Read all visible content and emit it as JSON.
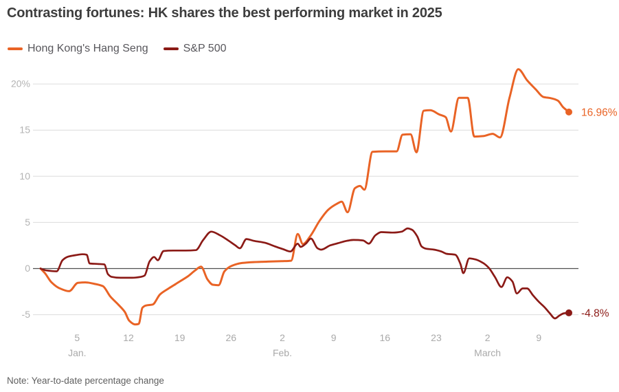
{
  "title": "Contrasting fortunes: HK shares the best performing market in 2025",
  "note": "Note: Year-to-date percentage change",
  "legend": {
    "items": [
      {
        "label": "Hong Kong's Hang Seng",
        "color": "#e96325"
      },
      {
        "label": "S&P 500",
        "color": "#8b1a16"
      }
    ]
  },
  "colors": {
    "grid": "#dcdcdc",
    "zero_line": "#4f4f4f",
    "y_tick_text": "#b3b3b3",
    "x_tick_text": "#a9a9a9",
    "title_text": "#3d3d3d",
    "note_text": "#5f5f5f"
  },
  "chart_data": {
    "type": "line",
    "title": "Contrasting fortunes: HK shares the best performing market in 2025",
    "note": "Note: Year-to-date percentage change",
    "x_unit": "days since Dec 31, 2024",
    "ylabel": "Year-to-date percentage change (%)",
    "ylim": [
      -7.5,
      22.5
    ],
    "grid": "horizontal",
    "legend_position": "top-left",
    "y_ticks": [
      {
        "v": 20,
        "label": "20%"
      },
      {
        "v": 15,
        "label": "15"
      },
      {
        "v": 10,
        "label": "10"
      },
      {
        "v": 5,
        "label": "5"
      },
      {
        "v": 0,
        "label": "0",
        "zero_line": true
      },
      {
        "v": -5,
        "label": "-5"
      }
    ],
    "x_ticks": [
      {
        "d": 5,
        "label": "5",
        "month": "Jan."
      },
      {
        "d": 12,
        "label": "12"
      },
      {
        "d": 19,
        "label": "19"
      },
      {
        "d": 26,
        "label": "26"
      },
      {
        "d": 33,
        "label": "2",
        "month": "Feb."
      },
      {
        "d": 40,
        "label": "9"
      },
      {
        "d": 47,
        "label": "16"
      },
      {
        "d": 54,
        "label": "23"
      },
      {
        "d": 61,
        "label": "2",
        "month": "March"
      },
      {
        "d": 68,
        "label": "9"
      }
    ],
    "series": [
      {
        "name": "Hong Kong's Hang Seng",
        "color": "#e96325",
        "line_width": 3,
        "end_label": "16.96%",
        "end_value": 16.96,
        "points": [
          [
            0,
            0
          ],
          [
            0.6,
            -0.5
          ],
          [
            1.5,
            -1.5
          ],
          [
            2.5,
            -2.1
          ],
          [
            3.9,
            -2.45
          ],
          [
            5.1,
            -1.55
          ],
          [
            6.1,
            -1.5
          ],
          [
            7.3,
            -1.65
          ],
          [
            8.5,
            -1.9
          ],
          [
            9.5,
            -3.0
          ],
          [
            10.6,
            -3.9
          ],
          [
            11.5,
            -4.7
          ],
          [
            12.1,
            -5.65
          ],
          [
            12.9,
            -6.05
          ],
          [
            13.4,
            -6.0
          ],
          [
            13.9,
            -4.25
          ],
          [
            14.4,
            -4.0
          ],
          [
            15.3,
            -3.9
          ],
          [
            16.3,
            -2.8
          ],
          [
            17.4,
            -2.2
          ],
          [
            18.4,
            -1.7
          ],
          [
            19.1,
            -1.35
          ],
          [
            20.1,
            -0.85
          ],
          [
            21.1,
            -0.2
          ],
          [
            21.9,
            0.2
          ],
          [
            22.8,
            -1.2
          ],
          [
            23.5,
            -1.75
          ],
          [
            24.3,
            -1.8
          ],
          [
            25.1,
            -0.3
          ],
          [
            26.1,
            0.3
          ],
          [
            27.5,
            0.6
          ],
          [
            29.1,
            0.7
          ],
          [
            31,
            0.75
          ],
          [
            32.9,
            0.8
          ],
          [
            34.2,
            0.85
          ],
          [
            35.1,
            3.75
          ],
          [
            35.8,
            2.65
          ],
          [
            36.8,
            3.5
          ],
          [
            38.1,
            5.2
          ],
          [
            39.3,
            6.4
          ],
          [
            40.4,
            7.0
          ],
          [
            41.1,
            7.25
          ],
          [
            41.9,
            6.1
          ],
          [
            42.9,
            8.7
          ],
          [
            43.6,
            8.95
          ],
          [
            44.2,
            8.55
          ],
          [
            45.3,
            12.65
          ],
          [
            47,
            12.7
          ],
          [
            48.6,
            12.7
          ],
          [
            49.4,
            14.5
          ],
          [
            50.5,
            14.55
          ],
          [
            51.3,
            12.6
          ],
          [
            52.3,
            17.1
          ],
          [
            53.2,
            17.15
          ],
          [
            54.4,
            16.7
          ],
          [
            55.3,
            16.4
          ],
          [
            56,
            14.85
          ],
          [
            57.1,
            18.5
          ],
          [
            58.3,
            18.5
          ],
          [
            59.2,
            14.3
          ],
          [
            60.4,
            14.35
          ],
          [
            61.7,
            14.6
          ],
          [
            62.7,
            14.2
          ],
          [
            64,
            18.5
          ],
          [
            65.2,
            21.6
          ],
          [
            66.4,
            20.4
          ],
          [
            67.6,
            19.4
          ],
          [
            68.6,
            18.6
          ],
          [
            69.7,
            18.45
          ],
          [
            70.6,
            18.2
          ],
          [
            71.3,
            17.5
          ],
          [
            72.1,
            16.96
          ]
        ]
      },
      {
        "name": "S&P 500",
        "color": "#8b1a16",
        "line_width": 2.7,
        "end_label": "-4.8%",
        "end_value": -4.8,
        "points": [
          [
            0,
            0
          ],
          [
            0.8,
            -0.2
          ],
          [
            2.2,
            -0.3
          ],
          [
            3,
            0.9
          ],
          [
            3.8,
            1.3
          ],
          [
            4.8,
            1.45
          ],
          [
            5.7,
            1.55
          ],
          [
            6.3,
            1.5
          ],
          [
            6.7,
            0.55
          ],
          [
            7.8,
            0.5
          ],
          [
            8.7,
            0.45
          ],
          [
            9.2,
            -0.6
          ],
          [
            9.7,
            -0.9
          ],
          [
            10.9,
            -1.0
          ],
          [
            12.5,
            -1.0
          ],
          [
            13.7,
            -0.9
          ],
          [
            14.2,
            -0.75
          ],
          [
            14.9,
            0.8
          ],
          [
            15.5,
            1.25
          ],
          [
            16,
            0.9
          ],
          [
            16.8,
            1.9
          ],
          [
            18.1,
            1.95
          ],
          [
            19.8,
            1.95
          ],
          [
            21.2,
            2.0
          ],
          [
            22.2,
            3.1
          ],
          [
            23.3,
            4.0
          ],
          [
            24.5,
            3.6
          ],
          [
            25.7,
            3.0
          ],
          [
            26.6,
            2.5
          ],
          [
            27.2,
            2.2
          ],
          [
            28.1,
            3.2
          ],
          [
            29.1,
            3.0
          ],
          [
            30.6,
            2.8
          ],
          [
            32,
            2.4
          ],
          [
            33.1,
            2.1
          ],
          [
            34.1,
            1.85
          ],
          [
            35.1,
            2.7
          ],
          [
            35.5,
            2.35
          ],
          [
            36.2,
            2.7
          ],
          [
            36.9,
            3.25
          ],
          [
            37.8,
            2.2
          ],
          [
            38.3,
            2.05
          ],
          [
            39.5,
            2.5
          ],
          [
            40.6,
            2.75
          ],
          [
            41.8,
            3.0
          ],
          [
            42.7,
            3.1
          ],
          [
            44,
            3.05
          ],
          [
            44.8,
            2.7
          ],
          [
            45.7,
            3.6
          ],
          [
            46.5,
            3.95
          ],
          [
            48.1,
            3.9
          ],
          [
            49.3,
            4.0
          ],
          [
            50.1,
            4.35
          ],
          [
            50.7,
            4.2
          ],
          [
            51.4,
            3.5
          ],
          [
            52,
            2.4
          ],
          [
            52.6,
            2.15
          ],
          [
            53.7,
            2.05
          ],
          [
            54.7,
            1.85
          ],
          [
            55.4,
            1.6
          ],
          [
            56.6,
            1.5
          ],
          [
            57.3,
            0.5
          ],
          [
            57.7,
            -0.5
          ],
          [
            58.5,
            1.1
          ],
          [
            59.3,
            1.0
          ],
          [
            60.4,
            0.6
          ],
          [
            61.2,
            0.05
          ],
          [
            62,
            -0.9
          ],
          [
            62.9,
            -2.0
          ],
          [
            63.7,
            -0.95
          ],
          [
            64.4,
            -1.4
          ],
          [
            65,
            -2.7
          ],
          [
            65.8,
            -2.15
          ],
          [
            66.4,
            -2.15
          ],
          [
            67.2,
            -2.9
          ],
          [
            68,
            -3.6
          ],
          [
            68.8,
            -4.2
          ],
          [
            69.5,
            -4.85
          ],
          [
            70.2,
            -5.4
          ],
          [
            70.8,
            -5.1
          ],
          [
            71.4,
            -4.85
          ],
          [
            72.1,
            -4.8
          ]
        ]
      }
    ]
  }
}
